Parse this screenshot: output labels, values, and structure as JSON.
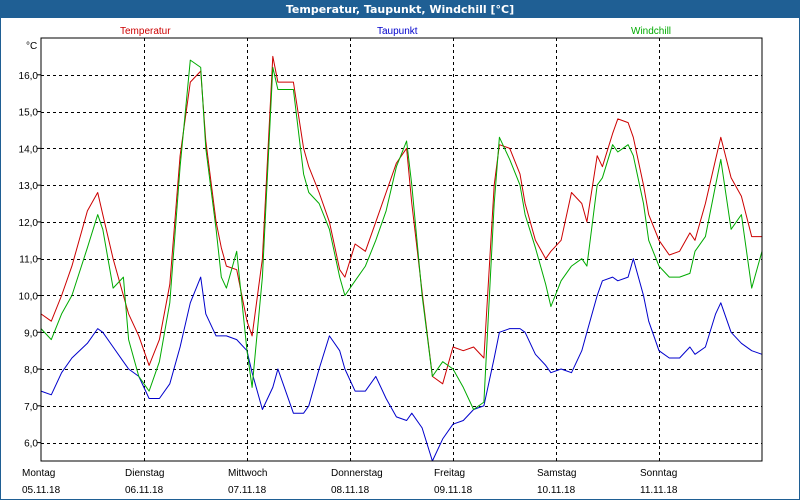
{
  "window": {
    "title": "Temperatur, Taupunkt, Windchill [°C]"
  },
  "chart_data": {
    "type": "line",
    "title": "Temperatur, Taupunkt, Windchill [°C]",
    "ylabel": "°C",
    "ylim": [
      5.5,
      17.0
    ],
    "yticks": [
      "6,0",
      "7,0",
      "8,0",
      "9,0",
      "10,0",
      "11,0",
      "12,0",
      "13,0",
      "14,0",
      "15,0",
      "16,0"
    ],
    "ytick_values": [
      6,
      7,
      8,
      9,
      10,
      11,
      12,
      13,
      14,
      15,
      16
    ],
    "xlim": [
      0,
      7
    ],
    "days": [
      {
        "weekday": "Montag",
        "date": "05.11.18"
      },
      {
        "weekday": "Dienstag",
        "date": "06.11.18"
      },
      {
        "weekday": "Mittwoch",
        "date": "07.11.18"
      },
      {
        "weekday": "Donnerstag",
        "date": "08.11.18"
      },
      {
        "weekday": "Freitag",
        "date": "09.11.18"
      },
      {
        "weekday": "Samstag",
        "date": "10.11.18"
      },
      {
        "weekday": "Sonntag",
        "date": "11.11.18"
      }
    ],
    "grid": true,
    "series": [
      {
        "name": "Temperatur",
        "color": "#cc0000",
        "x": [
          0,
          0.1,
          0.2,
          0.3,
          0.45,
          0.55,
          0.6,
          0.7,
          0.8,
          0.85,
          0.95,
          1.05,
          1.15,
          1.25,
          1.35,
          1.45,
          1.55,
          1.6,
          1.7,
          1.75,
          1.8,
          1.9,
          2.0,
          2.05,
          2.15,
          2.25,
          2.3,
          2.45,
          2.55,
          2.6,
          2.7,
          2.8,
          2.9,
          2.95,
          3.05,
          3.15,
          3.25,
          3.35,
          3.45,
          3.55,
          3.6,
          3.7,
          3.8,
          3.9,
          4.0,
          4.1,
          4.2,
          4.3,
          4.4,
          4.45,
          4.55,
          4.65,
          4.7,
          4.8,
          4.9,
          4.95,
          5.05,
          5.15,
          5.25,
          5.3,
          5.4,
          5.45,
          5.55,
          5.6,
          5.7,
          5.75,
          5.85,
          5.9,
          6.0,
          6.1,
          6.2,
          6.3,
          6.35,
          6.45,
          6.55,
          6.6,
          6.7,
          6.8,
          6.9,
          7.0
        ],
        "y": [
          9.5,
          9.3,
          10.0,
          10.8,
          12.3,
          12.8,
          12.2,
          11.0,
          10.0,
          9.5,
          8.9,
          8.1,
          8.8,
          10.3,
          13.8,
          15.8,
          16.1,
          14.2,
          12.0,
          11.3,
          10.8,
          10.7,
          9.3,
          8.9,
          11.0,
          16.5,
          15.8,
          15.8,
          14.0,
          13.5,
          12.8,
          12.0,
          10.7,
          10.5,
          11.4,
          11.2,
          12.0,
          12.8,
          13.6,
          14.0,
          12.5,
          10.1,
          7.8,
          7.6,
          8.6,
          8.5,
          8.6,
          8.3,
          13.0,
          14.1,
          14.0,
          13.3,
          12.5,
          11.5,
          11.0,
          11.2,
          11.5,
          12.8,
          12.5,
          12.0,
          13.8,
          13.5,
          14.4,
          14.8,
          14.7,
          14.3,
          13.0,
          12.2,
          11.5,
          11.1,
          11.2,
          11.7,
          11.5,
          12.5,
          13.7,
          14.3,
          13.2,
          12.7,
          11.6,
          11.6
        ]
      },
      {
        "name": "Taupunkt",
        "color": "#0000cc",
        "x": [
          0,
          0.1,
          0.2,
          0.3,
          0.45,
          0.55,
          0.6,
          0.7,
          0.8,
          0.85,
          0.95,
          1.05,
          1.15,
          1.25,
          1.35,
          1.45,
          1.55,
          1.6,
          1.7,
          1.75,
          1.8,
          1.9,
          2.0,
          2.05,
          2.15,
          2.25,
          2.3,
          2.45,
          2.55,
          2.6,
          2.7,
          2.8,
          2.9,
          2.95,
          3.05,
          3.15,
          3.25,
          3.35,
          3.45,
          3.55,
          3.6,
          3.7,
          3.8,
          3.9,
          4.0,
          4.1,
          4.2,
          4.3,
          4.4,
          4.45,
          4.55,
          4.65,
          4.7,
          4.8,
          4.9,
          4.95,
          5.05,
          5.15,
          5.25,
          5.3,
          5.4,
          5.45,
          5.55,
          5.6,
          5.7,
          5.75,
          5.85,
          5.9,
          6.0,
          6.1,
          6.2,
          6.3,
          6.35,
          6.45,
          6.55,
          6.6,
          6.7,
          6.8,
          6.9,
          7.0
        ],
        "y": [
          7.4,
          7.3,
          7.9,
          8.3,
          8.7,
          9.1,
          9.0,
          8.6,
          8.2,
          8.0,
          7.8,
          7.2,
          7.2,
          7.6,
          8.6,
          9.8,
          10.5,
          9.5,
          8.9,
          8.9,
          8.9,
          8.8,
          8.5,
          7.9,
          6.9,
          7.5,
          8.0,
          6.8,
          6.8,
          7.0,
          8.0,
          8.9,
          8.5,
          8.0,
          7.4,
          7.4,
          7.8,
          7.2,
          6.7,
          6.6,
          6.8,
          6.4,
          5.5,
          6.1,
          6.5,
          6.6,
          6.9,
          7.0,
          8.3,
          9.0,
          9.1,
          9.1,
          9.0,
          8.4,
          8.1,
          7.9,
          8.0,
          7.9,
          8.5,
          9.0,
          10.0,
          10.4,
          10.5,
          10.4,
          10.5,
          11.0,
          10.0,
          9.3,
          8.5,
          8.3,
          8.3,
          8.6,
          8.4,
          8.6,
          9.5,
          9.8,
          9.0,
          8.7,
          8.5,
          8.4
        ]
      },
      {
        "name": "Windchill",
        "color": "#00aa00",
        "x": [
          0,
          0.1,
          0.2,
          0.3,
          0.45,
          0.55,
          0.6,
          0.7,
          0.8,
          0.85,
          0.95,
          1.05,
          1.15,
          1.25,
          1.35,
          1.45,
          1.55,
          1.6,
          1.7,
          1.75,
          1.8,
          1.9,
          2.0,
          2.05,
          2.15,
          2.25,
          2.3,
          2.45,
          2.55,
          2.6,
          2.7,
          2.8,
          2.9,
          2.95,
          3.05,
          3.15,
          3.25,
          3.35,
          3.45,
          3.55,
          3.6,
          3.7,
          3.8,
          3.9,
          4.0,
          4.1,
          4.2,
          4.3,
          4.4,
          4.45,
          4.55,
          4.65,
          4.7,
          4.8,
          4.9,
          4.95,
          5.05,
          5.15,
          5.25,
          5.3,
          5.4,
          5.45,
          5.55,
          5.6,
          5.7,
          5.75,
          5.85,
          5.9,
          6.0,
          6.1,
          6.2,
          6.3,
          6.35,
          6.45,
          6.55,
          6.6,
          6.7,
          6.8,
          6.9,
          7.0
        ],
        "y": [
          9.1,
          8.8,
          9.5,
          10.0,
          11.3,
          12.2,
          11.8,
          10.2,
          10.5,
          8.8,
          7.8,
          7.4,
          8.2,
          9.8,
          13.5,
          16.4,
          16.2,
          14.0,
          11.8,
          10.5,
          10.2,
          11.2,
          8.5,
          7.5,
          10.5,
          16.2,
          15.6,
          15.6,
          13.3,
          12.8,
          12.5,
          11.8,
          10.5,
          10.0,
          10.4,
          10.8,
          11.5,
          12.3,
          13.5,
          14.2,
          13.0,
          10.0,
          7.8,
          8.2,
          8.0,
          7.5,
          6.9,
          7.1,
          12.5,
          14.3,
          13.7,
          13.0,
          12.2,
          11.3,
          10.3,
          9.7,
          10.4,
          10.8,
          11.0,
          10.8,
          13.0,
          13.2,
          14.1,
          13.9,
          14.1,
          13.8,
          12.5,
          11.5,
          10.8,
          10.5,
          10.5,
          10.6,
          11.2,
          11.6,
          13.0,
          13.7,
          11.8,
          12.2,
          10.2,
          11.2
        ]
      }
    ]
  }
}
